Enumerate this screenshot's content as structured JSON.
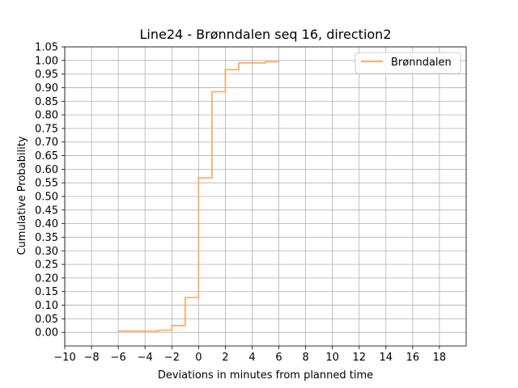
{
  "chart_data": {
    "type": "line",
    "step": "post",
    "title": "Line24 - Brønndalen seq 16, direction2",
    "xlabel": "Deviations in minutes from planned time",
    "ylabel": "Cumulative Probability",
    "xlim": [
      -10,
      20
    ],
    "ylim": [
      -0.05,
      1.05
    ],
    "xticks": [
      -10,
      -8,
      -6,
      -4,
      -2,
      0,
      2,
      4,
      6,
      8,
      10,
      12,
      14,
      16,
      18
    ],
    "xtick_labels": [
      "−10",
      "−8",
      "−6",
      "−4",
      "−2",
      "0",
      "2",
      "4",
      "6",
      "8",
      "10",
      "12",
      "14",
      "16",
      "18"
    ],
    "yticks": [
      0.0,
      0.05,
      0.1,
      0.15,
      0.2,
      0.25,
      0.3,
      0.35,
      0.4,
      0.45,
      0.5,
      0.55,
      0.6,
      0.65,
      0.7,
      0.75,
      0.8,
      0.85,
      0.9,
      0.95,
      1.0,
      1.05
    ],
    "ytick_labels": [
      "0.00",
      "0.05",
      "0.10",
      "0.15",
      "0.20",
      "0.25",
      "0.30",
      "0.35",
      "0.40",
      "0.45",
      "0.50",
      "0.55",
      "0.60",
      "0.65",
      "0.70",
      "0.75",
      "0.80",
      "0.85",
      "0.90",
      "0.95",
      "1.00",
      "1.05"
    ],
    "grid": true,
    "legend_position": "top-right",
    "series": [
      {
        "name": "Brønndalen",
        "color": "#ffa54f",
        "x": [
          -6,
          -3,
          -2,
          -1,
          0,
          1,
          2,
          3,
          5,
          6
        ],
        "y": [
          0.005,
          0.008,
          0.025,
          0.128,
          0.568,
          0.885,
          0.966,
          0.991,
          0.995,
          0.995
        ]
      }
    ]
  }
}
